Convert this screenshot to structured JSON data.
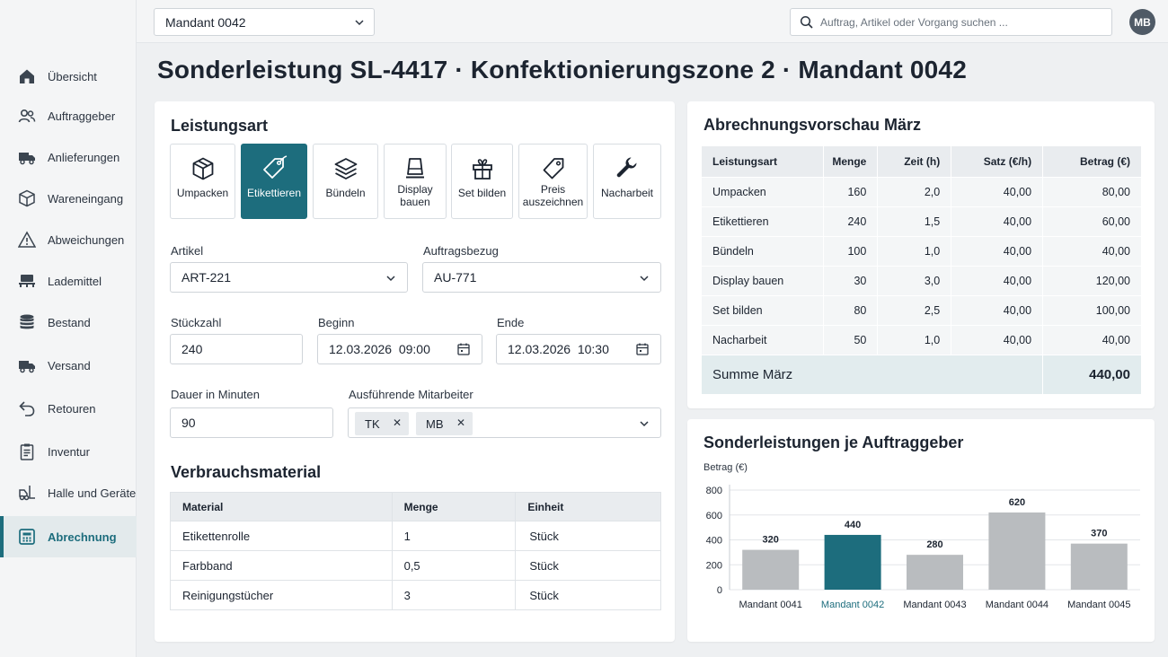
{
  "topbar": {
    "mandant": "Mandant 0042",
    "search_placeholder": "Auftrag, Artikel oder Vorgang suchen ...",
    "avatar": "MB"
  },
  "sidebar": {
    "items": [
      {
        "label": "Übersicht",
        "icon": "home-icon"
      },
      {
        "label": "Auftraggeber",
        "icon": "users-icon"
      },
      {
        "label": "Anlieferungen",
        "icon": "truck-icon"
      },
      {
        "label": "Wareneingang",
        "icon": "box-icon"
      },
      {
        "label": "Abweichungen",
        "icon": "warning-icon"
      },
      {
        "label": "Lademittel",
        "icon": "pallet-icon"
      },
      {
        "label": "Bestand",
        "icon": "database-icon"
      },
      {
        "label": "Versand",
        "icon": "shipping-truck-icon"
      },
      {
        "label": "Retouren",
        "icon": "return-arrow-icon"
      },
      {
        "label": "Inventur",
        "icon": "clipboard-icon"
      },
      {
        "label": "Halle und Geräte",
        "icon": "forklift-icon"
      },
      {
        "label": "Abrechnung",
        "icon": "invoice-icon"
      }
    ],
    "active": "Abrechnung"
  },
  "page": {
    "title": "Sonderleistung SL-4417 · Konfektionierungszone 2 · Mandant 0042"
  },
  "form": {
    "section_title": "Leistungsart",
    "service_types": [
      {
        "label": "Umpacken",
        "icon": "package-icon"
      },
      {
        "label": "Etikettieren",
        "icon": "tag-icon"
      },
      {
        "label": "Bündeln",
        "icon": "layers-icon"
      },
      {
        "label": "Display\nbauen",
        "icon": "display-stand-icon"
      },
      {
        "label": "Set bilden",
        "icon": "gift-icon"
      },
      {
        "label": "Preis\nauszeichnen",
        "icon": "price-tag-icon"
      },
      {
        "label": "Nacharbeit",
        "icon": "wrench-icon"
      }
    ],
    "selected_service": "Etikettieren",
    "artikel_label": "Artikel",
    "artikel_value": "ART-221",
    "auftragsbezug_label": "Auftragsbezug",
    "auftragsbezug_value": "AU-771",
    "stueckzahl_label": "Stückzahl",
    "stueckzahl_value": "240",
    "beginn_label": "Beginn",
    "beginn_value": "12.03.2026  09:00",
    "ende_label": "Ende",
    "ende_value": "12.03.2026  10:30",
    "dauer_label": "Dauer in Minuten",
    "dauer_value": "90",
    "mitarbeiter_label": "Ausführende Mitarbeiter",
    "mitarbeiter": [
      "TK",
      "MB"
    ]
  },
  "material": {
    "title": "Verbrauchsmaterial",
    "columns": [
      "Material",
      "Menge",
      "Einheit"
    ],
    "rows": [
      [
        "Etikettenrolle",
        "1",
        "Stück"
      ],
      [
        "Farbband",
        "0,5",
        "Stück"
      ],
      [
        "Reinigungstücher",
        "3",
        "Stück"
      ]
    ]
  },
  "abrechnung": {
    "title": "Abrechnungsvorschau März",
    "columns": [
      "Leistungsart",
      "Menge",
      "Zeit (h)",
      "Satz (€/h)",
      "Betrag (€)"
    ],
    "rows": [
      [
        "Umpacken",
        "160",
        "2,0",
        "40,00",
        "80,00"
      ],
      [
        "Etikettieren",
        "240",
        "1,5",
        "40,00",
        "60,00"
      ],
      [
        "Bündeln",
        "100",
        "1,0",
        "40,00",
        "40,00"
      ],
      [
        "Display bauen",
        "30",
        "3,0",
        "40,00",
        "120,00"
      ],
      [
        "Set bilden",
        "80",
        "2,5",
        "40,00",
        "100,00"
      ],
      [
        "Nacharbeit",
        "50",
        "1,0",
        "40,00",
        "40,00"
      ]
    ],
    "sum_label": "Summe März",
    "sum_value": "440,00"
  },
  "chart_data": {
    "type": "bar",
    "title": "Sonderleistungen je Auftraggeber",
    "ylabel": "Betrag (€)",
    "categories": [
      "Mandant 0041",
      "Mandant 0042",
      "Mandant 0043",
      "Mandant 0044",
      "Mandant 0045"
    ],
    "values": [
      320,
      440,
      280,
      620,
      370
    ],
    "highlight": "Mandant 0042",
    "yticks": [
      0,
      200,
      400,
      600,
      800
    ],
    "ylim": [
      0,
      800
    ],
    "grid": true,
    "colors": {
      "bar": "#b9bcbf",
      "highlight": "#1d6d7d"
    }
  }
}
